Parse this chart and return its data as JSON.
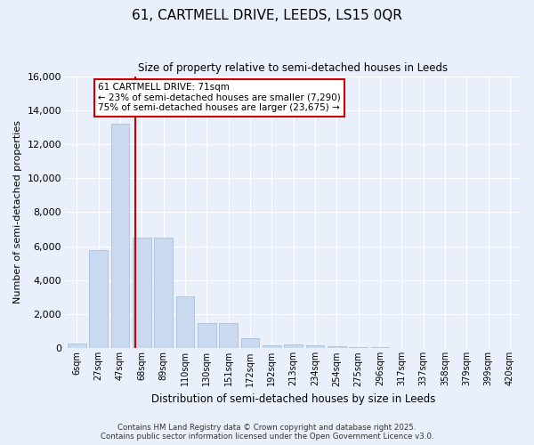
{
  "title": "61, CARTMELL DRIVE, LEEDS, LS15 0QR",
  "subtitle": "Size of property relative to semi-detached houses in Leeds",
  "xlabel": "Distribution of semi-detached houses by size in Leeds",
  "ylabel": "Number of semi-detached properties",
  "bin_labels": [
    "6sqm",
    "27sqm",
    "47sqm",
    "68sqm",
    "89sqm",
    "110sqm",
    "130sqm",
    "151sqm",
    "172sqm",
    "192sqm",
    "213sqm",
    "234sqm",
    "254sqm",
    "275sqm",
    "296sqm",
    "317sqm",
    "337sqm",
    "358sqm",
    "379sqm",
    "399sqm",
    "420sqm"
  ],
  "bar_heights": [
    300,
    5800,
    13200,
    6500,
    6500,
    3050,
    1500,
    1500,
    600,
    200,
    250,
    200,
    100,
    50,
    50,
    20,
    10,
    5,
    5,
    3,
    2
  ],
  "bar_color": "#c9d9f0",
  "bar_edge_color": "#a0b8d8",
  "property_bin_index": 3,
  "vline_color": "#cc0000",
  "annotation_title": "61 CARTMELL DRIVE: 71sqm",
  "annotation_line1": "← 23% of semi-detached houses are smaller (7,290)",
  "annotation_line2": "75% of semi-detached houses are larger (23,675) →",
  "annotation_box_color": "#ffffff",
  "annotation_box_edge": "#cc0000",
  "ylim": [
    0,
    16000
  ],
  "yticks": [
    0,
    2000,
    4000,
    6000,
    8000,
    10000,
    12000,
    14000,
    16000
  ],
  "bg_color": "#eaf0fb",
  "footer_line1": "Contains HM Land Registry data © Crown copyright and database right 2025.",
  "footer_line2": "Contains public sector information licensed under the Open Government Licence v3.0."
}
